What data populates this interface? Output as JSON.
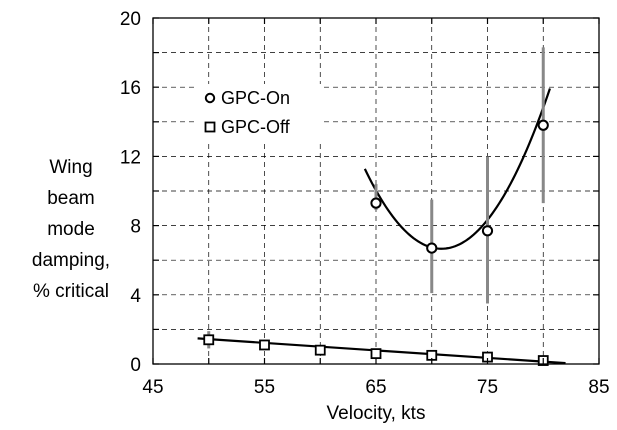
{
  "chart_data": {
    "type": "scatter",
    "title": "",
    "xlabel": "Velocity, kts",
    "ylabel_lines": [
      "Wing",
      "beam",
      "mode",
      "damping,",
      "% critical"
    ],
    "xlim": [
      45,
      85
    ],
    "ylim": [
      0,
      20
    ],
    "x_ticks": [
      45,
      55,
      65,
      75,
      85
    ],
    "y_ticks": [
      0,
      4,
      8,
      12,
      16,
      20
    ],
    "grid": true,
    "legend_position": "upper-left inside",
    "series": [
      {
        "name": "GPC-On",
        "marker": "circle",
        "points": [
          {
            "x": 65,
            "y": 9.3,
            "err_low": 8.9,
            "err_high": 10.4
          },
          {
            "x": 70,
            "y": 6.7,
            "err_low": 4.1,
            "err_high": 9.5
          },
          {
            "x": 75,
            "y": 7.7,
            "err_low": 3.5,
            "err_high": 12.0
          },
          {
            "x": 80,
            "y": 13.8,
            "err_low": 9.3,
            "err_high": 18.3
          }
        ],
        "fit": {
          "type": "quadratic",
          "x_range": [
            64,
            80.6
          ],
          "a": 0.09785,
          "b": -13.869,
          "c": 498.1
        }
      },
      {
        "name": "GPC-Off",
        "marker": "square",
        "points": [
          {
            "x": 50,
            "y": 1.4,
            "err_low": 0.9,
            "err_high": 1.9
          },
          {
            "x": 55,
            "y": 1.1
          },
          {
            "x": 60,
            "y": 0.8
          },
          {
            "x": 65,
            "y": 0.6
          },
          {
            "x": 70,
            "y": 0.5
          },
          {
            "x": 75,
            "y": 0.4
          },
          {
            "x": 80,
            "y": 0.2
          }
        ],
        "fit": {
          "type": "linear",
          "x_range": [
            49,
            82
          ],
          "points": [
            [
              49,
              1.48
            ],
            [
              82,
              0.05
            ]
          ]
        }
      }
    ],
    "colors": {
      "axis": "#000000",
      "grid": "#000000",
      "error_bar": "#888888",
      "fit": "#000000"
    }
  }
}
